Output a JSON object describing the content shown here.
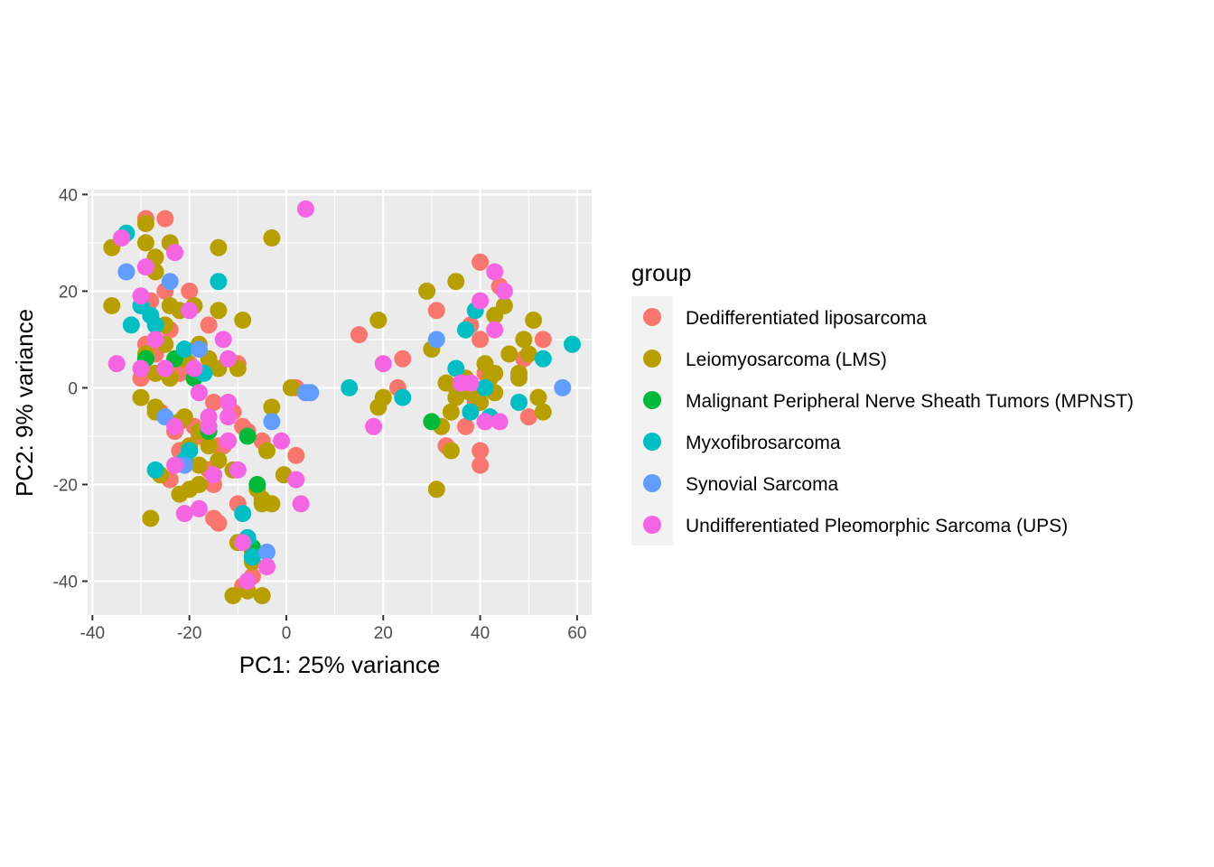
{
  "chart_data": {
    "type": "scatter",
    "title": "",
    "xlabel": "PC1: 25% variance",
    "ylabel": "PC2: 9% variance",
    "xlim": [
      -41,
      63
    ],
    "ylim": [
      -47,
      41
    ],
    "xticks": [
      "-40",
      "-20",
      "0",
      "20",
      "40",
      "60"
    ],
    "yticks": [
      "-40",
      "-20",
      "0",
      "20",
      "40"
    ],
    "xtick_values": [
      -40,
      -20,
      0,
      20,
      40,
      60
    ],
    "ytick_values": [
      -40,
      -20,
      0,
      20,
      40
    ],
    "grid": true,
    "legend": {
      "title": "group",
      "position": "right"
    },
    "series": [
      {
        "name": "Dedifferentiated liposarcoma",
        "color": "#F8766D",
        "points": [
          [
            -29,
            35
          ],
          [
            -25,
            35
          ],
          [
            -25,
            20
          ],
          [
            -24,
            12
          ],
          [
            -28,
            18
          ],
          [
            -29,
            9
          ],
          [
            -27,
            7
          ],
          [
            -20,
            20
          ],
          [
            -20,
            5
          ],
          [
            -16,
            13
          ],
          [
            -22,
            3
          ],
          [
            -15,
            -3
          ],
          [
            -17,
            -9
          ],
          [
            -13,
            -12
          ],
          [
            -16,
            -17
          ],
          [
            -15,
            -20
          ],
          [
            -11,
            -5
          ],
          [
            -10,
            5
          ],
          [
            -10,
            -24
          ],
          [
            -9,
            -8
          ],
          [
            -12,
            -3
          ],
          [
            -8,
            -31
          ],
          [
            -9,
            -41
          ],
          [
            -7,
            -39
          ],
          [
            -23,
            -9
          ],
          [
            -24,
            -19
          ],
          [
            -18,
            -10
          ],
          [
            -14,
            -12
          ],
          [
            -20,
            -13
          ],
          [
            -15,
            -27
          ],
          [
            -14,
            -28
          ],
          [
            -22,
            -13
          ],
          [
            -8,
            -9
          ],
          [
            -30,
            2
          ],
          [
            -26,
            -5
          ],
          [
            -19,
            -8
          ],
          [
            2,
            -14
          ],
          [
            2,
            0
          ],
          [
            -5,
            -11
          ],
          [
            15,
            11
          ],
          [
            24,
            6
          ],
          [
            23,
            0
          ],
          [
            31,
            16
          ],
          [
            33,
            -12
          ],
          [
            38,
            13
          ],
          [
            40,
            10
          ],
          [
            41,
            3
          ],
          [
            40,
            26
          ],
          [
            41,
            -7
          ],
          [
            40,
            -13
          ],
          [
            40,
            -16
          ],
          [
            44,
            21
          ],
          [
            37,
            -8
          ],
          [
            39,
            -3
          ],
          [
            49,
            6
          ],
          [
            50,
            -6
          ],
          [
            53,
            10
          ]
        ]
      },
      {
        "name": "Leiomyosarcoma (LMS)",
        "color": "#B79F00",
        "points": [
          [
            -36,
            29
          ],
          [
            -36,
            17
          ],
          [
            -29,
            30
          ],
          [
            -29,
            34
          ],
          [
            -27,
            27
          ],
          [
            -27,
            24
          ],
          [
            -24,
            30
          ],
          [
            -22,
            16
          ],
          [
            -24,
            17
          ],
          [
            -19,
            17
          ],
          [
            -25,
            13
          ],
          [
            -25,
            9
          ],
          [
            -29,
            7
          ],
          [
            -27,
            3
          ],
          [
            -24,
            2
          ],
          [
            -21,
            6
          ],
          [
            -18,
            9
          ],
          [
            -18,
            3
          ],
          [
            -16,
            6
          ],
          [
            -14,
            4
          ],
          [
            -14,
            16
          ],
          [
            -10,
            4
          ],
          [
            -14,
            29
          ],
          [
            -9,
            14
          ],
          [
            -30,
            -2
          ],
          [
            -27,
            -4
          ],
          [
            -27,
            -5
          ],
          [
            -22,
            -7
          ],
          [
            -21,
            -6
          ],
          [
            -18,
            -9
          ],
          [
            -20,
            -12
          ],
          [
            -16,
            -12
          ],
          [
            -18,
            -16
          ],
          [
            -18,
            -20
          ],
          [
            -20,
            -21
          ],
          [
            -22,
            -22
          ],
          [
            -26,
            -18
          ],
          [
            -14,
            -15
          ],
          [
            -11,
            -17
          ],
          [
            -10,
            -32
          ],
          [
            -7,
            -34
          ],
          [
            -7,
            -36
          ],
          [
            -11,
            -43
          ],
          [
            -5,
            -43
          ],
          [
            -8,
            -42
          ],
          [
            -28,
            -27
          ],
          [
            -5,
            -23
          ],
          [
            -3,
            -24
          ],
          [
            -5,
            -24
          ],
          [
            -6,
            -21
          ],
          [
            -4,
            -13
          ],
          [
            -3,
            -4
          ],
          [
            -3,
            31
          ],
          [
            -0.5,
            -18
          ],
          [
            1,
            0
          ],
          [
            19,
            14
          ],
          [
            19,
            -4
          ],
          [
            20,
            -2
          ],
          [
            29,
            20
          ],
          [
            30,
            8
          ],
          [
            31,
            -21
          ],
          [
            32,
            -8
          ],
          [
            33,
            1
          ],
          [
            34,
            -13
          ],
          [
            34,
            -5
          ],
          [
            35,
            -2
          ],
          [
            35,
            22
          ],
          [
            35,
            0
          ],
          [
            37,
            2
          ],
          [
            38,
            -1
          ],
          [
            40,
            -3
          ],
          [
            41,
            5
          ],
          [
            42,
            2
          ],
          [
            43,
            -1
          ],
          [
            43,
            15
          ],
          [
            43,
            3
          ],
          [
            45,
            17
          ],
          [
            46,
            7
          ],
          [
            48,
            3
          ],
          [
            48,
            2
          ],
          [
            49,
            10
          ],
          [
            50,
            7
          ],
          [
            51,
            14
          ],
          [
            52,
            -2
          ],
          [
            53,
            -5
          ]
        ]
      },
      {
        "name": "Malignant Peripheral Nerve Sheath Tumors (MPNST)",
        "color": "#00BA38",
        "points": [
          [
            -29,
            6
          ],
          [
            -23,
            6
          ],
          [
            -19,
            2
          ],
          [
            -16,
            -9
          ],
          [
            -8,
            -10
          ],
          [
            -7,
            -33
          ],
          [
            -6,
            -20
          ],
          [
            30,
            -7
          ]
        ]
      },
      {
        "name": "Myxofibrosarcoma",
        "color": "#00BFC4",
        "points": [
          [
            -33,
            32
          ],
          [
            -32,
            13
          ],
          [
            -30,
            17
          ],
          [
            -28,
            15
          ],
          [
            -27,
            13
          ],
          [
            -27,
            -17
          ],
          [
            -21,
            8
          ],
          [
            -20,
            -13
          ],
          [
            -21,
            -15
          ],
          [
            -17,
            3
          ],
          [
            -14,
            22
          ],
          [
            -9,
            -26
          ],
          [
            -8,
            -31
          ],
          [
            -7,
            -35
          ],
          [
            13,
            0
          ],
          [
            24,
            -2
          ],
          [
            35,
            4
          ],
          [
            37,
            12
          ],
          [
            39,
            16
          ],
          [
            38,
            -5
          ],
          [
            41,
            0
          ],
          [
            42,
            -6
          ],
          [
            48,
            -3
          ],
          [
            53,
            6
          ],
          [
            59,
            9
          ]
        ]
      },
      {
        "name": "Synovial Sarcoma",
        "color": "#619CFF",
        "points": [
          [
            -33,
            24
          ],
          [
            -24,
            22
          ],
          [
            -25,
            -6
          ],
          [
            -21,
            -16
          ],
          [
            -18,
            8
          ],
          [
            -3,
            -7
          ],
          [
            -4,
            -34
          ],
          [
            5,
            -1
          ],
          [
            4,
            -1
          ],
          [
            31,
            10
          ],
          [
            57,
            0
          ]
        ]
      },
      {
        "name": "Undifferentiated Pleomorphic Sarcoma (UPS)",
        "color": "#F564E3",
        "points": [
          [
            -34,
            31
          ],
          [
            -35,
            5
          ],
          [
            -29,
            25
          ],
          [
            -30,
            19
          ],
          [
            -30,
            4
          ],
          [
            -27,
            10
          ],
          [
            -25,
            4
          ],
          [
            -23,
            28
          ],
          [
            -23,
            -8
          ],
          [
            -23,
            -16
          ],
          [
            -21,
            -26
          ],
          [
            -20,
            16
          ],
          [
            -19,
            4
          ],
          [
            -18,
            -1
          ],
          [
            -18,
            -25
          ],
          [
            -16,
            -6
          ],
          [
            -16,
            -8
          ],
          [
            -15,
            -18
          ],
          [
            -13,
            10
          ],
          [
            -12,
            6
          ],
          [
            -12,
            -6
          ],
          [
            -12,
            -3
          ],
          [
            -12,
            -11
          ],
          [
            -10,
            -17
          ],
          [
            -9,
            -32
          ],
          [
            -8,
            -40
          ],
          [
            -4,
            -37
          ],
          [
            -1,
            -11
          ],
          [
            2,
            -19
          ],
          [
            3,
            -24
          ],
          [
            4,
            37
          ],
          [
            18,
            -8
          ],
          [
            20,
            5
          ],
          [
            36,
            1
          ],
          [
            38,
            1
          ],
          [
            40,
            18
          ],
          [
            41,
            -7
          ],
          [
            43,
            24
          ],
          [
            43,
            12
          ],
          [
            45,
            20
          ],
          [
            44,
            -7
          ]
        ]
      }
    ]
  }
}
